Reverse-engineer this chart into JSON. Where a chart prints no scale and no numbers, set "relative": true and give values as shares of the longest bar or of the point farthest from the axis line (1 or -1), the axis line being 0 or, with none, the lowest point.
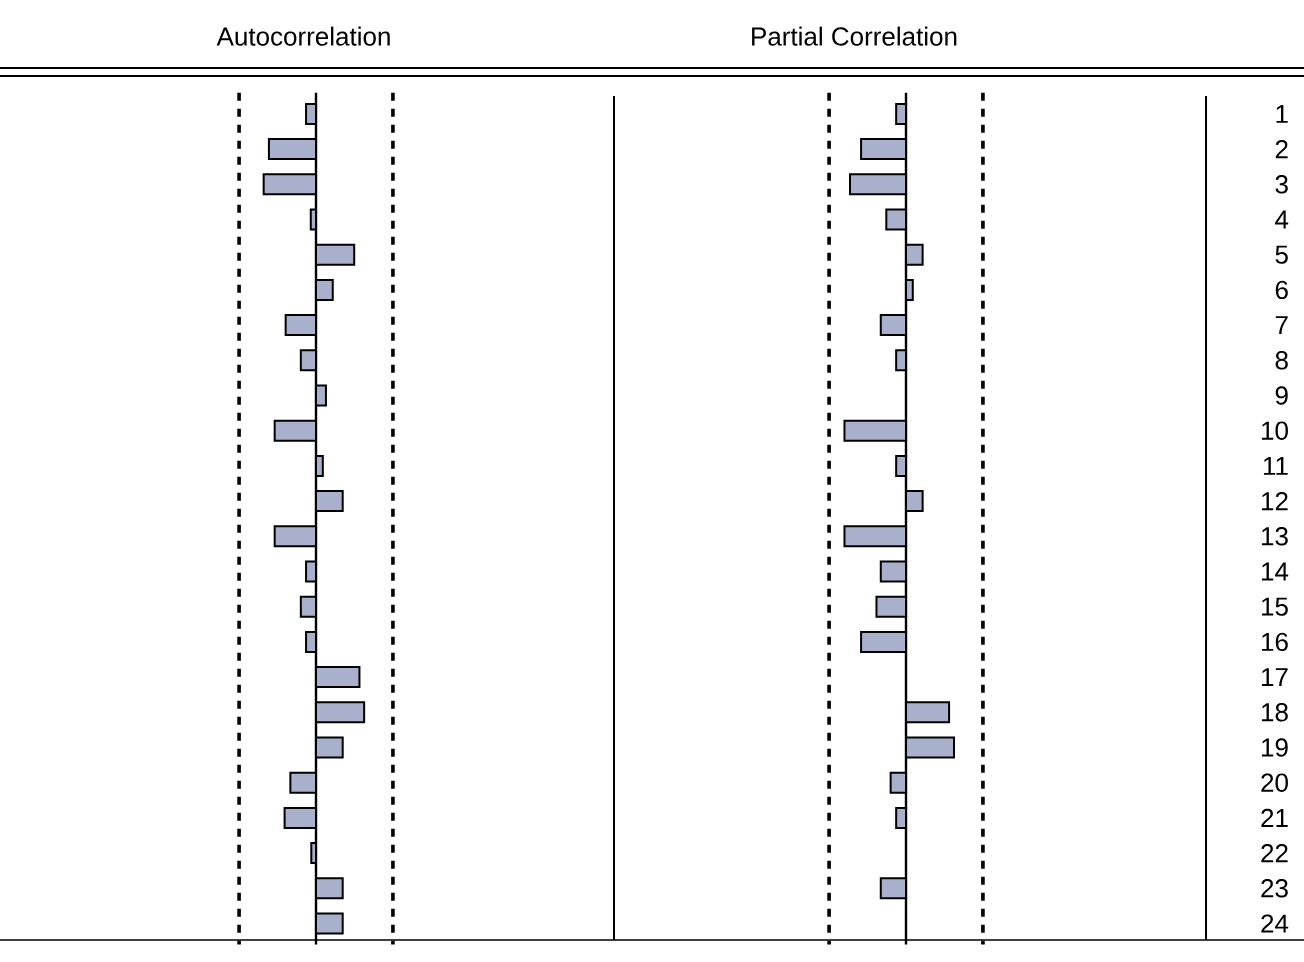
{
  "chart_data": [
    {
      "type": "bar",
      "orientation": "horizontal",
      "relative": true,
      "title": "Autocorrelation",
      "tick_labels": false,
      "color": "#a8b0cc",
      "categories": [
        "1",
        "2",
        "3",
        "4",
        "5",
        "6",
        "7",
        "8",
        "9",
        "10",
        "11",
        "12",
        "13",
        "14",
        "15",
        "16",
        "17",
        "18",
        "19",
        "20",
        "21",
        "22",
        "23",
        "24"
      ],
      "values": [
        -0.19,
        -0.9,
        -1,
        -0.1,
        0.73,
        0.32,
        -0.58,
        -0.29,
        0.19,
        -0.79,
        0.13,
        0.51,
        -0.79,
        -0.19,
        -0.29,
        -0.19,
        0.83,
        0.92,
        0.51,
        -0.49,
        -0.6,
        -0.09,
        0.51,
        0.51
      ],
      "ref_lines": [
        {
          "axis": "x",
          "value": -1.47,
          "line_style": "dashed"
        },
        {
          "axis": "x",
          "value": 1.47,
          "line_style": "dashed"
        }
      ]
    },
    {
      "type": "bar",
      "orientation": "horizontal",
      "relative": true,
      "title": "Partial Correlation",
      "tick_labels": "y",
      "color": "#a8b0cc",
      "categories": [
        "1",
        "2",
        "3",
        "4",
        "5",
        "6",
        "7",
        "8",
        "9",
        "10",
        "11",
        "12",
        "13",
        "14",
        "15",
        "16",
        "17",
        "18",
        "19",
        "20",
        "21",
        "22",
        "23",
        "24"
      ],
      "values": [
        -0.16,
        -0.73,
        -0.91,
        -0.32,
        0.27,
        0.11,
        -0.41,
        -0.16,
        null,
        -1,
        -0.16,
        0.27,
        -1,
        -0.41,
        -0.48,
        -0.73,
        null,
        0.7,
        0.78,
        -0.25,
        -0.16,
        null,
        -0.41,
        null
      ],
      "ref_lines": [
        {
          "axis": "x",
          "value": -1.25,
          "line_style": "dashed"
        },
        {
          "axis": "x",
          "value": 1.25,
          "line_style": "dashed"
        }
      ]
    }
  ]
}
